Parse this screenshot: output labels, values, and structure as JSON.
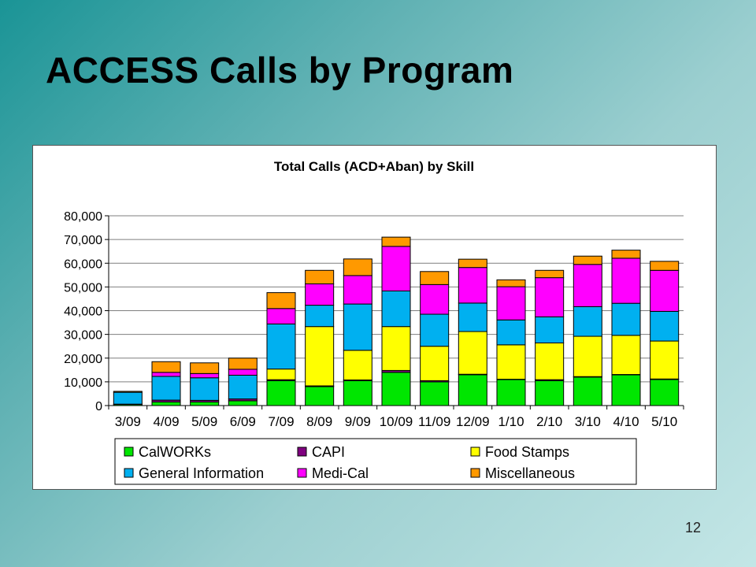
{
  "slide": {
    "title": "ACCESS Calls by Program",
    "page_number": "12"
  },
  "chart_data": {
    "type": "bar",
    "stacked": true,
    "title": "Total Calls (ACD+Aban) by Skill",
    "xlabel": "",
    "ylabel": "",
    "ylim": [
      0,
      80000
    ],
    "yticks": [
      0,
      10000,
      20000,
      30000,
      40000,
      50000,
      60000,
      70000,
      80000
    ],
    "ytick_labels": [
      "0",
      "10,000",
      "20,000",
      "30,000",
      "40,000",
      "50,000",
      "60,000",
      "70,000",
      "80,000"
    ],
    "grid": true,
    "legend_position": "bottom",
    "categories": [
      "3/09",
      "4/09",
      "5/09",
      "6/09",
      "7/09",
      "8/09",
      "9/09",
      "10/09",
      "11/09",
      "12/09",
      "1/10",
      "2/10",
      "3/10",
      "4/10",
      "5/10"
    ],
    "series": [
      {
        "name": "CalWORKs",
        "color": "#00e600",
        "values": [
          500,
          1500,
          1500,
          2000,
          10500,
          8000,
          10500,
          14000,
          10000,
          13000,
          11000,
          10500,
          12000,
          13000,
          11000
        ]
      },
      {
        "name": "CAPI",
        "color": "#800080",
        "values": [
          100,
          800,
          700,
          800,
          400,
          300,
          300,
          800,
          500,
          200,
          100,
          400,
          200,
          100,
          200
        ]
      },
      {
        "name": "Food Stamps",
        "color": "#ffff00",
        "values": [
          0,
          0,
          0,
          0,
          4500,
          25000,
          12500,
          18500,
          14500,
          18000,
          14500,
          15500,
          17000,
          16500,
          16000
        ]
      },
      {
        "name": "General Information",
        "color": "#00b0f0",
        "values": [
          5000,
          10000,
          9500,
          10000,
          19000,
          9000,
          19500,
          15000,
          13500,
          12000,
          10500,
          11000,
          12500,
          13500,
          12500
        ]
      },
      {
        "name": "Medi-Cal",
        "color": "#ff00ff",
        "values": [
          0,
          1700,
          1800,
          2500,
          6500,
          9000,
          12000,
          18800,
          12500,
          15000,
          14000,
          16500,
          17800,
          19000,
          17300
        ]
      },
      {
        "name": "Miscellaneous",
        "color": "#ff9900",
        "values": [
          400,
          4500,
          4500,
          4700,
          6700,
          5700,
          7000,
          3900,
          5500,
          3500,
          2900,
          3100,
          3500,
          3400,
          3800
        ]
      }
    ]
  }
}
